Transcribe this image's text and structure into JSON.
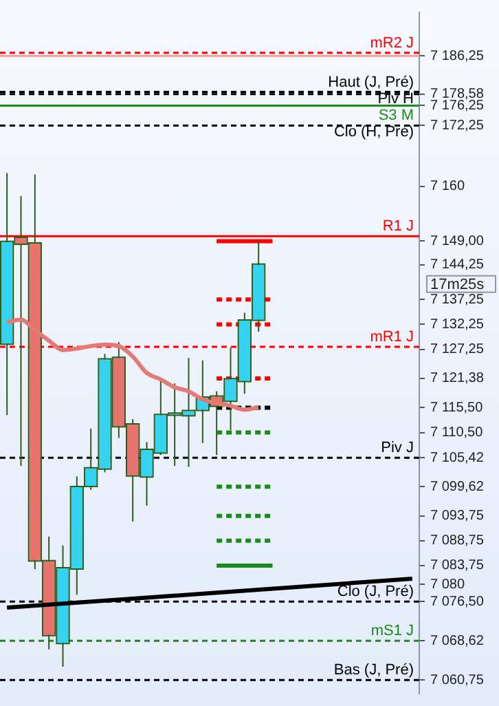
{
  "chart_data": {
    "type": "candlestick",
    "categories": [
      null,
      null,
      null,
      null,
      null,
      null,
      null,
      null,
      null,
      null,
      null,
      null,
      null,
      null,
      null,
      null,
      null,
      null,
      null,
      null,
      null,
      null,
      null,
      null,
      null,
      null,
      null,
      null,
      null,
      null
    ],
    "ylim": [
      7058,
      7195
    ],
    "yticks": [
      {
        "value": 7186.25,
        "label": "7 186,25"
      },
      {
        "value": 7178.58,
        "label": "7 178,58"
      },
      {
        "value": 7176.25,
        "label": "7 176,25"
      },
      {
        "value": 7172.25,
        "label": "7 172,25"
      },
      {
        "value": 7160,
        "label": "7 160"
      },
      {
        "value": 7149.0,
        "label": "7 149,00"
      },
      {
        "value": 7144.25,
        "label": "7 144,25"
      },
      {
        "value": 7137.25,
        "label": "7 137,25"
      },
      {
        "value": 7132.25,
        "label": "7 132,25"
      },
      {
        "value": 7127.25,
        "label": "7 127,25"
      },
      {
        "value": 7121.38,
        "label": "7 121,38"
      },
      {
        "value": 7115.5,
        "label": "7 115,50"
      },
      {
        "value": 7110.5,
        "label": "7 110,50"
      },
      {
        "value": 7105.42,
        "label": "7 105,42"
      },
      {
        "value": 7099.62,
        "label": "7 099,62"
      },
      {
        "value": 7093.75,
        "label": "7 093,75"
      },
      {
        "value": 7088.75,
        "label": "7 088,75"
      },
      {
        "value": 7083.75,
        "label": "7 083,75"
      },
      {
        "value": 7080,
        "label": "7 080"
      },
      {
        "value": 7076.5,
        "label": "7 076,50"
      },
      {
        "value": 7068.62,
        "label": "7 068,62"
      },
      {
        "value": 7060.75,
        "label": "7 060,75"
      }
    ],
    "series": [
      {
        "type": "line",
        "color": "#e47a74",
        "values": [
          7132.7,
          7133.2,
          7131.1,
          7129.0,
          7127.1,
          7127.4,
          7127.9,
          7128.2,
          7127.9,
          7125.8,
          7122.5,
          7121.2,
          7119.6,
          7118.8,
          7117.2,
          7116.4,
          7115.9,
          7115.1,
          7115.6,
          null,
          null,
          null,
          null,
          null,
          null,
          null,
          null,
          null,
          null,
          null
        ]
      },
      {
        "type": "line",
        "color": "#000000",
        "values": [
          7075.3,
          null,
          null,
          null,
          null,
          null,
          null,
          null,
          null,
          null,
          null,
          null,
          null,
          null,
          null,
          null,
          null,
          null,
          null,
          null,
          null,
          null,
          null,
          null,
          null,
          null,
          null,
          null,
          null,
          7081.1
        ]
      },
      {
        "type": "line",
        "color": "#ff0000",
        "line_style": "solid",
        "values": [
          null,
          null,
          null,
          null,
          null,
          null,
          null,
          null,
          null,
          null,
          null,
          null,
          null,
          null,
          null,
          7149,
          7149,
          7149,
          null,
          7149,
          null,
          null,
          null,
          null,
          null,
          null,
          null,
          null,
          null,
          null
        ]
      },
      {
        "type": "line",
        "color": "#ff0000",
        "line_style": "dashed",
        "values": [
          null,
          null,
          null,
          null,
          null,
          null,
          null,
          null,
          null,
          null,
          null,
          null,
          null,
          null,
          null,
          7137.25,
          7137.25,
          7137.25,
          null,
          7137.25,
          null,
          null,
          null,
          null,
          null,
          null,
          null,
          null,
          null,
          null
        ]
      },
      {
        "type": "line",
        "color": "#ff0000",
        "line_style": "dashed",
        "values": [
          null,
          null,
          null,
          null,
          null,
          null,
          null,
          null,
          null,
          null,
          null,
          null,
          null,
          null,
          null,
          7132.25,
          7132.25,
          null,
          null,
          7132.25,
          null,
          null,
          null,
          null,
          null,
          null,
          null,
          null,
          null,
          null
        ]
      },
      {
        "type": "line",
        "color": "#ff0000",
        "line_style": "dashed",
        "values": [
          null,
          null,
          null,
          null,
          null,
          null,
          null,
          null,
          null,
          null,
          null,
          null,
          null,
          null,
          null,
          7121.38,
          7121.38,
          null,
          7121.38,
          7121.38,
          null,
          null,
          null,
          null,
          null,
          null,
          null,
          null,
          null,
          null
        ]
      },
      {
        "type": "line",
        "color": "#000000",
        "line_style": "dashed",
        "values": [
          null,
          null,
          null,
          null,
          null,
          null,
          null,
          null,
          null,
          null,
          null,
          null,
          null,
          null,
          null,
          7115.5,
          null,
          null,
          7115.5,
          7115.5,
          null,
          null,
          null,
          null,
          null,
          null,
          null,
          null,
          null,
          null
        ]
      },
      {
        "type": "line",
        "color": "#1a8c1a",
        "line_style": "dashed",
        "values": [
          null,
          null,
          null,
          null,
          null,
          null,
          null,
          null,
          null,
          null,
          null,
          null,
          null,
          null,
          null,
          7110.5,
          7110.5,
          7110.5,
          7110.5,
          7110.5,
          null,
          null,
          null,
          null,
          null,
          null,
          null,
          null,
          null,
          null
        ]
      },
      {
        "type": "line",
        "color": "#1a8c1a",
        "line_style": "dashed",
        "values": [
          null,
          null,
          null,
          null,
          null,
          null,
          null,
          null,
          null,
          null,
          null,
          null,
          null,
          null,
          null,
          7099.62,
          7099.62,
          7099.62,
          7099.62,
          7099.62,
          null,
          null,
          null,
          null,
          null,
          null,
          null,
          null,
          null,
          null
        ]
      },
      {
        "type": "line",
        "color": "#1a8c1a",
        "line_style": "dashed",
        "values": [
          null,
          null,
          null,
          null,
          null,
          null,
          null,
          null,
          null,
          null,
          null,
          null,
          null,
          null,
          null,
          7093.75,
          7093.75,
          7093.75,
          7093.75,
          7093.75,
          null,
          null,
          null,
          null,
          null,
          null,
          null,
          null,
          null,
          null
        ]
      },
      {
        "type": "line",
        "color": "#1a8c1a",
        "line_style": "dashed",
        "values": [
          null,
          null,
          null,
          null,
          null,
          null,
          null,
          null,
          null,
          null,
          null,
          null,
          null,
          null,
          null,
          7088.75,
          7088.75,
          7088.75,
          7088.75,
          7088.75,
          null,
          null,
          null,
          null,
          null,
          null,
          null,
          null,
          null,
          null
        ]
      },
      {
        "type": "line",
        "color": "#1a8c1a",
        "line_style": "solid",
        "values": [
          null,
          null,
          null,
          null,
          null,
          null,
          null,
          null,
          null,
          null,
          null,
          null,
          null,
          null,
          null,
          7083.75,
          7083.75,
          7083.75,
          7083.75,
          7083.75,
          null,
          null,
          null,
          null,
          null,
          null,
          null,
          null,
          null,
          null
        ]
      },
      {
        "type": "candlestick",
        "colors": [
          "#35d3f2",
          "#e8736c",
          "#e8736c",
          "#e8736c",
          "#35d3f2",
          "#35d3f2",
          "#35d3f2",
          "#35d3f2",
          "#e8736c",
          "#e8736c",
          "#35d3f2",
          "#35d3f2",
          "#35d3f2",
          "#35d3f2",
          "#35d3f2",
          "#e8736c",
          "#35d3f2",
          "#35d3f2",
          "#35d3f2",
          null,
          null,
          null,
          null,
          null,
          null,
          null,
          null,
          null,
          null,
          null
        ],
        "ohlc": [
          [
            7128.4,
            7162.7,
            7114.0,
            7148.8
          ],
          [
            7149.6,
            7158.1,
            7103.8,
            7148.5
          ],
          [
            7148.5,
            7162.4,
            7083.0,
            7084.8
          ],
          [
            7084.6,
            7089.6,
            7066.9,
            7069.8
          ],
          [
            7068.2,
            7087.8,
            7063.4,
            7083.2
          ],
          [
            7083.2,
            7101.7,
            7077.9,
            7099.5
          ],
          [
            7099.8,
            7111.3,
            7099.0,
            7103.3
          ],
          [
            7103.3,
            7126.3,
            7102.5,
            7125.2
          ],
          [
            7125.5,
            7128.7,
            7109.4,
            7111.8
          ],
          [
            7112.1,
            7113.2,
            7092.6,
            7101.9
          ],
          [
            7101.7,
            7108.6,
            7095.8,
            7107.0
          ],
          [
            7106.5,
            7120.9,
            7106.0,
            7114.0
          ],
          [
            7114.1,
            7120.4,
            7103.8,
            7114.3
          ],
          [
            7114.0,
            7125.5,
            7103.6,
            7114.8
          ],
          [
            7115.1,
            7125.0,
            7108.4,
            7117.5
          ],
          [
            7117.7,
            7118.8,
            7106.0,
            7115.9
          ],
          [
            7116.9,
            7127.6,
            7111.0,
            7121.2
          ],
          [
            7120.9,
            7134.6,
            7118.3,
            7133.0
          ],
          [
            7133.2,
            7149.0,
            7130.8,
            7144.25
          ],
          null,
          null,
          null,
          null,
          null,
          null,
          null,
          null,
          null,
          null,
          null
        ]
      }
    ],
    "ref_lines": [
      {
        "axis": "y",
        "value": 7186.88,
        "label": "mR2 J",
        "color": "#ff0000",
        "line_style": "dashed"
      },
      {
        "axis": "y",
        "value": 7186.25,
        "color": "#f0a0a0",
        "line_style": "solid"
      },
      {
        "axis": "y",
        "value": 7179.0,
        "label": "Haut (J, Pré)",
        "color": "#000000",
        "line_style": "dashed"
      },
      {
        "axis": "y",
        "value": 7178.58,
        "label": "Piv H",
        "color": "#000000",
        "line_style": "dashed"
      },
      {
        "axis": "y",
        "value": 7176.25,
        "label": "S3 M",
        "color": "#1a8c1a",
        "line_style": "solid"
      },
      {
        "axis": "y",
        "value": 7172.25,
        "label": "Clo (H, Pré)",
        "color": "#000000",
        "line_style": "dashed"
      },
      {
        "axis": "y",
        "value": 7150.0,
        "label": "R1 J",
        "color": "#ff0000",
        "line_style": "solid"
      },
      {
        "axis": "y",
        "value": 7127.75,
        "label": "mR1 J",
        "color": "#ff0000",
        "line_style": "dashed"
      },
      {
        "axis": "y",
        "value": 7105.42,
        "label": "Piv J",
        "color": "#000000",
        "line_style": "dashed"
      },
      {
        "axis": "y",
        "value": 7076.5,
        "label": "Clo (J, Pré)",
        "color": "#000000",
        "line_style": "dashed"
      },
      {
        "axis": "y",
        "value": 7068.62,
        "label": "mS1 J",
        "color": "#1a8c1a",
        "line_style": "dashed"
      },
      {
        "axis": "y",
        "value": 7060.75,
        "label": "Bas (J, Pré)",
        "color": "#000000",
        "line_style": "dashed"
      }
    ],
    "annotations": [
      "17m25s"
    ]
  }
}
